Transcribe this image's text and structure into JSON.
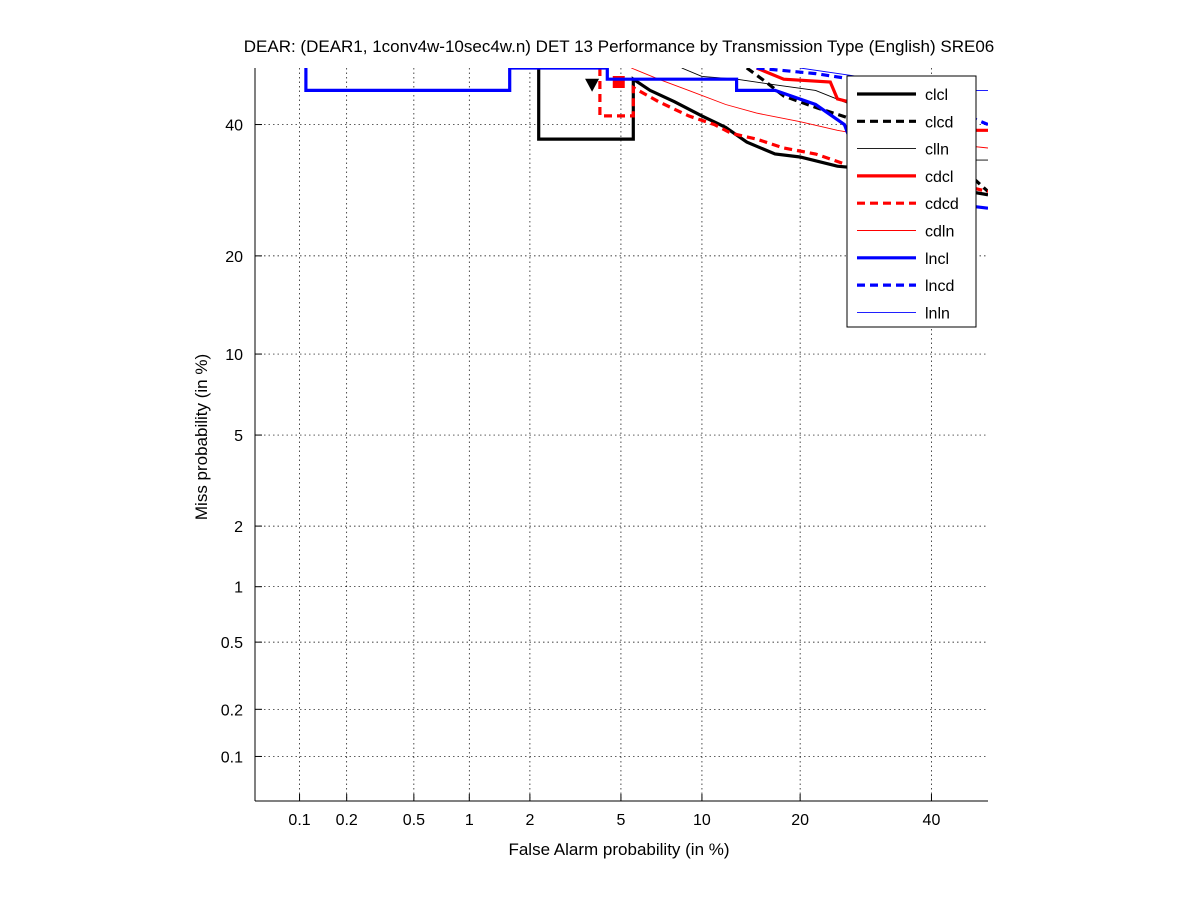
{
  "chart_data": {
    "type": "line",
    "title": "DEAR: (DEAR1, 1conv4w-10sec4w.n) DET 13 Performance by Transmission Type (English) SRE06",
    "xlabel": "False Alarm probability (in %)",
    "ylabel": "Miss probability (in %)",
    "x_scale": "probit",
    "y_scale": "probit",
    "xlim": [
      0.05,
      50
    ],
    "ylim": [
      0.05,
      50
    ],
    "grid": true,
    "legend_position": "top-right",
    "x_ticks": [
      0.1,
      0.2,
      0.5,
      1,
      2,
      5,
      10,
      20,
      40
    ],
    "x_tick_labels": [
      "0.1",
      "0.2",
      "0.5",
      "1",
      "2",
      "5",
      "10",
      "20",
      "40"
    ],
    "y_ticks": [
      0.1,
      0.2,
      0.5,
      1,
      2,
      5,
      10,
      20,
      40
    ],
    "y_tick_labels": [
      "0.1",
      "0.2",
      "0.5",
      "1",
      "2",
      "5",
      "10",
      "20",
      "40"
    ],
    "series": [
      {
        "name": "clcl",
        "color": "#000000",
        "style": "solid",
        "weight": "thick",
        "points": [
          [
            2.2,
            50
          ],
          [
            2.2,
            37.5
          ],
          [
            5.6,
            37.5
          ],
          [
            5.6,
            48
          ],
          [
            6.5,
            46
          ],
          [
            8,
            44
          ],
          [
            10,
            41.5
          ],
          [
            12,
            39.5
          ],
          [
            14,
            37
          ],
          [
            17,
            35
          ],
          [
            20,
            34.5
          ],
          [
            25,
            33
          ],
          [
            30,
            32.5
          ],
          [
            36,
            31
          ],
          [
            40,
            30
          ],
          [
            50,
            28.5
          ]
        ],
        "marker": [
          3.8,
          47
        ]
      },
      {
        "name": "clcd",
        "color": "#000000",
        "style": "dashed",
        "weight": "thick",
        "points": [
          [
            14,
            50
          ],
          [
            16,
            47.5
          ],
          [
            18,
            45
          ],
          [
            22,
            43
          ],
          [
            27,
            41
          ],
          [
            32,
            39.5
          ],
          [
            40,
            38
          ],
          [
            45,
            33
          ],
          [
            50,
            29
          ]
        ]
      },
      {
        "name": "clln",
        "color": "#000000",
        "style": "solid",
        "weight": "thin",
        "points": [
          [
            8.5,
            50
          ],
          [
            10,
            48.5
          ],
          [
            13,
            48
          ],
          [
            17,
            47
          ],
          [
            22,
            46
          ],
          [
            28,
            43
          ],
          [
            35,
            40
          ],
          [
            42,
            37
          ],
          [
            46,
            34
          ],
          [
            50,
            34
          ]
        ]
      },
      {
        "name": "cdcl",
        "color": "#ff0000",
        "style": "solid",
        "weight": "thick",
        "points": [
          [
            15,
            50
          ],
          [
            18,
            48
          ],
          [
            24,
            47.5
          ],
          [
            25,
            44.5
          ],
          [
            30,
            43
          ],
          [
            37,
            40
          ],
          [
            42,
            39
          ],
          [
            50,
            39
          ]
        ]
      },
      {
        "name": "cdcd",
        "color": "#ff0000",
        "style": "dashed",
        "weight": "thick",
        "points": [
          [
            4.1,
            50
          ],
          [
            4.1,
            41.5
          ],
          [
            5.6,
            41.5
          ],
          [
            5.6,
            46.5
          ],
          [
            7,
            44
          ],
          [
            9,
            41.5
          ],
          [
            11,
            40
          ],
          [
            12.5,
            38.5
          ],
          [
            15,
            37.5
          ],
          [
            18,
            36
          ],
          [
            22,
            35
          ],
          [
            27,
            33
          ],
          [
            35,
            31
          ],
          [
            45,
            30
          ],
          [
            50,
            29
          ]
        ],
        "marker": [
          4.9,
          47.5
        ]
      },
      {
        "name": "cdln",
        "color": "#ff0000",
        "style": "solid",
        "weight": "thin",
        "points": [
          [
            5.5,
            50
          ],
          [
            7,
            48
          ],
          [
            9,
            46
          ],
          [
            12,
            43.5
          ],
          [
            15,
            42
          ],
          [
            20,
            40.5
          ],
          [
            25,
            39
          ],
          [
            30,
            38
          ],
          [
            40,
            37
          ],
          [
            50,
            36
          ]
        ]
      },
      {
        "name": "lncl",
        "color": "#0000ff",
        "style": "solid",
        "weight": "thick",
        "points": [
          [
            0.11,
            50
          ],
          [
            0.11,
            46
          ],
          [
            1.6,
            46
          ],
          [
            1.6,
            50
          ],
          [
            4.4,
            50
          ],
          [
            4.4,
            48
          ],
          [
            13,
            48
          ],
          [
            13,
            46
          ],
          [
            17,
            46
          ],
          [
            22,
            43.5
          ],
          [
            26,
            40
          ],
          [
            28,
            34
          ],
          [
            32,
            32
          ],
          [
            40,
            31
          ],
          [
            45,
            27
          ],
          [
            50,
            26.5
          ]
        ]
      },
      {
        "name": "lncd",
        "color": "#0000ff",
        "style": "dashed",
        "weight": "thick",
        "points": [
          [
            15,
            50
          ],
          [
            22,
            49
          ],
          [
            30,
            47.5
          ],
          [
            38,
            46
          ],
          [
            45,
            42
          ],
          [
            50,
            40
          ]
        ]
      },
      {
        "name": "lnln",
        "color": "#0000ff",
        "style": "solid",
        "weight": "thin",
        "points": [
          [
            20,
            50
          ],
          [
            28,
            48.5
          ],
          [
            38,
            47
          ],
          [
            45,
            46
          ],
          [
            50,
            46
          ]
        ]
      }
    ]
  }
}
